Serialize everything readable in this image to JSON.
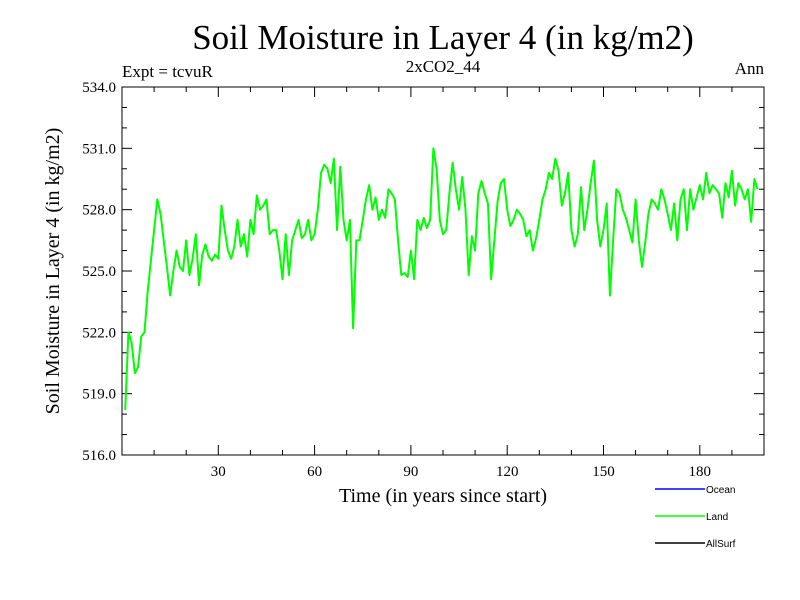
{
  "chart_data": {
    "type": "line",
    "title": "Soil Moisture in Layer 4 (in kg/m2)",
    "subtitle": "2xCO2_44",
    "left_label": "Expt = tcvuR",
    "right_label": "Ann",
    "xlabel": "Time (in years since start)",
    "ylabel": "Soil Moisture in Layer 4 (in kg/m2)",
    "xlim": [
      0,
      200
    ],
    "ylim": [
      516,
      534
    ],
    "x_ticks": [
      30,
      60,
      90,
      120,
      150,
      180
    ],
    "x_tick_labels": [
      "30",
      "60",
      "90",
      "120",
      "150",
      "180"
    ],
    "y_ticks": [
      516,
      519,
      522,
      525,
      528,
      531,
      534
    ],
    "y_tick_labels": [
      "516.0",
      "519.0",
      "522.0",
      "525.0",
      "528.0",
      "531.0",
      "534.0"
    ],
    "legend": [
      {
        "name": "Ocean",
        "color": "#0000ff"
      },
      {
        "name": "Land",
        "color": "#00ff00"
      },
      {
        "name": "AllSurf",
        "color": "#000000"
      }
    ],
    "legend_position": "bottom-right",
    "series": [
      {
        "name": "Land",
        "color": "#00ff00",
        "x_start": 1,
        "x_step": 1,
        "values": [
          518.2,
          522.0,
          521.5,
          520.0,
          520.3,
          521.8,
          522.0,
          524.0,
          525.5,
          527.0,
          528.5,
          527.8,
          526.5,
          525.2,
          523.8,
          525.0,
          526.0,
          525.2,
          525.0,
          526.5,
          524.8,
          525.6,
          526.8,
          524.3,
          525.8,
          526.3,
          525.7,
          525.5,
          525.8,
          525.6,
          528.2,
          527.0,
          526.0,
          525.6,
          526.2,
          527.5,
          526.2,
          526.8,
          525.7,
          527.5,
          526.8,
          528.7,
          528.0,
          528.2,
          528.5,
          526.8,
          527.0,
          527.0,
          526.0,
          524.6,
          526.8,
          524.8,
          526.5,
          527.0,
          527.5,
          526.6,
          526.8,
          527.5,
          526.5,
          526.8,
          528.0,
          529.8,
          530.2,
          530.0,
          529.3,
          530.5,
          527.0,
          530.1,
          527.5,
          526.5,
          527.5,
          522.2,
          526.5,
          526.5,
          527.5,
          528.5,
          529.2,
          528.0,
          528.6,
          527.5,
          528.0,
          527.6,
          529.0,
          528.8,
          528.5,
          526.5,
          524.8,
          524.9,
          524.7,
          526.0,
          524.6,
          527.5,
          527.0,
          527.6,
          527.1,
          527.5,
          531.0,
          530.0,
          527.5,
          526.8,
          527.0,
          528.8,
          530.3,
          529.0,
          528.0,
          529.6,
          528.0,
          524.8,
          526.7,
          526.0,
          528.8,
          529.4,
          528.8,
          528.3,
          524.6,
          526.5,
          528.4,
          529.3,
          529.5,
          528.0,
          527.2,
          527.5,
          528.0,
          527.8,
          527.5,
          526.7,
          527.0,
          526.0,
          526.6,
          527.5,
          528.5,
          529.0,
          529.8,
          529.5,
          530.5,
          529.9,
          528.2,
          528.8,
          529.8,
          527.0,
          526.2,
          526.8,
          529.1,
          527.0,
          528.0,
          529.3,
          530.4,
          527.5,
          526.2,
          527.0,
          528.3,
          523.8,
          526.5,
          529.0,
          528.8,
          528.0,
          527.6,
          527.0,
          526.4,
          528.5,
          526.5,
          525.2,
          526.4,
          527.8,
          528.5,
          528.3,
          528.0,
          529.0,
          528.5,
          527.8,
          527.0,
          528.3,
          526.5,
          528.5,
          529.0,
          527.0,
          529.0,
          528.0,
          528.6,
          529.2,
          528.5,
          529.8,
          528.8,
          529.2,
          529.0,
          528.8,
          527.6,
          529.3,
          528.6,
          529.9,
          528.2,
          529.3,
          529.0,
          528.5,
          529.0,
          527.4,
          529.5,
          529.0
        ]
      }
    ]
  }
}
